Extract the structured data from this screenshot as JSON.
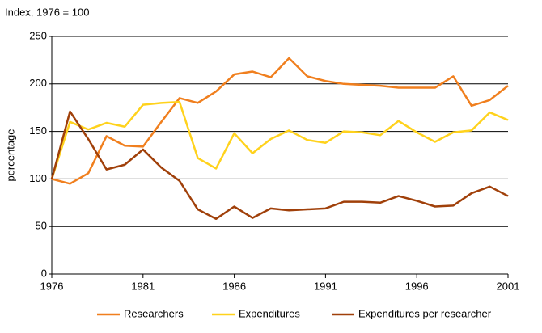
{
  "chart_data": {
    "type": "line",
    "subtitle": "Index, 1976 = 100",
    "y_label": "percentage",
    "x": [
      1976,
      1977,
      1978,
      1979,
      1980,
      1981,
      1982,
      1983,
      1984,
      1985,
      1986,
      1987,
      1988,
      1989,
      1990,
      1991,
      1992,
      1993,
      1994,
      1995,
      1996,
      1997,
      1998,
      1999,
      2000,
      2001
    ],
    "xlim": [
      1976,
      2001
    ],
    "xticks": [
      1976,
      1981,
      1986,
      1991,
      1996,
      2001
    ],
    "ylim": [
      0,
      250
    ],
    "yticks": [
      0,
      50,
      100,
      150,
      200,
      250
    ],
    "grid": true,
    "legend": "bottom",
    "series": [
      {
        "name": "Researchers",
        "color": "#f07f1e",
        "values": [
          100,
          95,
          106,
          145,
          135,
          134,
          160,
          185,
          180,
          192,
          210,
          213,
          207,
          227,
          208,
          203,
          200,
          199,
          198,
          196,
          196,
          196,
          208,
          177,
          183,
          198
        ]
      },
      {
        "name": "Expenditures",
        "color": "#ffd21c",
        "values": [
          100,
          160,
          152,
          159,
          155,
          178,
          180,
          181,
          122,
          111,
          148,
          127,
          142,
          151,
          141,
          138,
          150,
          149,
          146,
          161,
          149,
          139,
          149,
          151,
          170,
          162
        ]
      },
      {
        "name": "Expenditures per researcher",
        "color": "#a0400a",
        "values": [
          100,
          171,
          142,
          110,
          115,
          131,
          112,
          98,
          68,
          58,
          71,
          59,
          69,
          67,
          68,
          69,
          76,
          76,
          75,
          82,
          77,
          71,
          72,
          85,
          92,
          82
        ]
      }
    ]
  }
}
